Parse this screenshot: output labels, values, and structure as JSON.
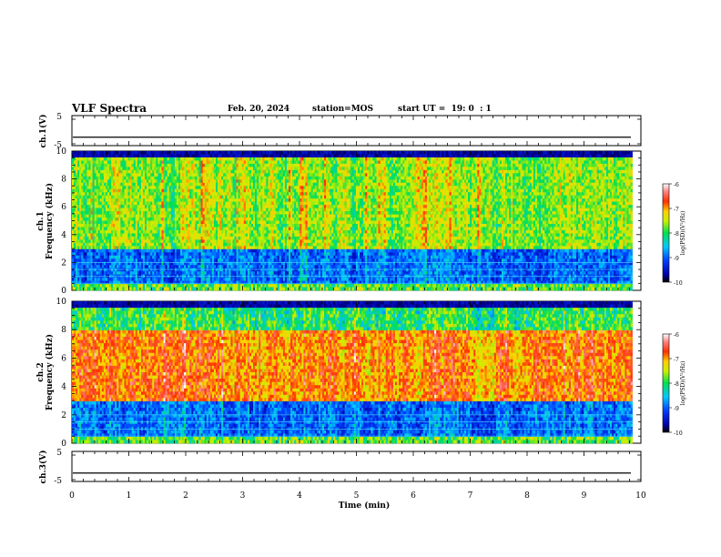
{
  "header": {
    "title": "VLF Spectra",
    "date": "Feb. 20, 2024",
    "station": "station=MOS",
    "start_ut": "start UT =  19: 0  : 1"
  },
  "chart_data": [
    {
      "type": "line",
      "name": "ch1-waveform",
      "ylabel": "ch.1(V)",
      "ylim": [
        -5,
        5
      ],
      "yticks": [
        "5",
        "-5"
      ],
      "xlim": [
        0,
        10
      ],
      "level": -2.2
    },
    {
      "type": "heatmap",
      "name": "ch1-spectrogram",
      "ylabel": "ch.1\nFrequency (kHz)",
      "ylim": [
        0,
        10
      ],
      "yticks": [
        "0",
        "2",
        "4",
        "6",
        "8",
        "10"
      ],
      "xlim": [
        0,
        9.85
      ],
      "colorbar": {
        "label": "log(PSD)(V²/Hz)",
        "range": [
          -10,
          -6
        ],
        "ticks": [
          "-6",
          "-7",
          "-8",
          "-9",
          "-10"
        ]
      },
      "intensity": "moderate",
      "band_kHz": [
        3,
        9.5
      ],
      "noise_lines_kHz": [
        0.5,
        1.0,
        1.5,
        2.0
      ]
    },
    {
      "type": "heatmap",
      "name": "ch2-spectrogram",
      "ylabel": "ch.2\nFrequency (kHz)",
      "ylim": [
        0,
        10
      ],
      "yticks": [
        "0",
        "2",
        "4",
        "6",
        "8",
        "10"
      ],
      "xlim": [
        0,
        9.85
      ],
      "colorbar": {
        "label": "log(PSD)(V²/Hz)",
        "range": [
          -10,
          -6
        ],
        "ticks": [
          "-6",
          "-7",
          "-8",
          "-9",
          "-10"
        ]
      },
      "intensity": "strong",
      "band_kHz": [
        3,
        8
      ],
      "noise_lines_kHz": [
        0.5,
        1.0,
        1.5,
        2.0
      ]
    },
    {
      "type": "line",
      "name": "ch3-waveform",
      "ylabel": "ch.3(V)",
      "ylim": [
        -5,
        5
      ],
      "yticks": [
        "5",
        "-5"
      ],
      "xlim": [
        0,
        10
      ],
      "level": -2.2
    }
  ],
  "xaxis": {
    "label": "Time (min)",
    "ticks": [
      "0",
      "1",
      "2",
      "3",
      "4",
      "5",
      "6",
      "7",
      "8",
      "9",
      "10"
    ]
  }
}
